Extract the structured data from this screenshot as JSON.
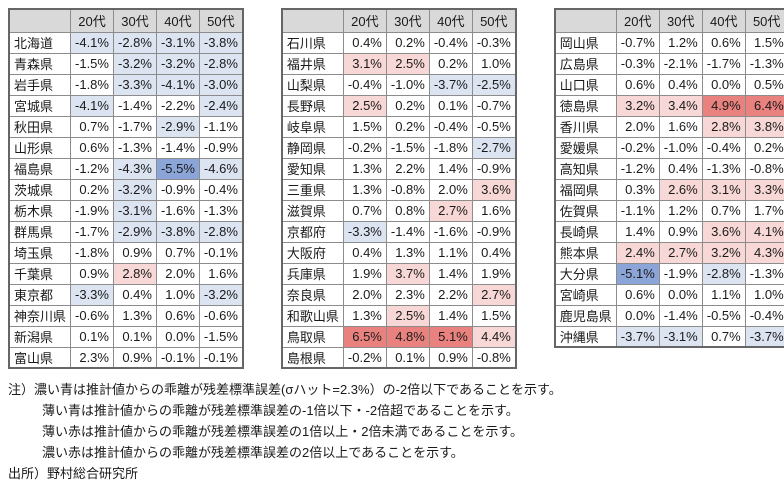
{
  "colors": {
    "dark_blue": "#8ca5d8",
    "light_blue": "#dce4f2",
    "light_red": "#f8d8d6",
    "dark_red": "#e9827f",
    "header_bg": "#d9d9d9",
    "inner_border": "#8c8c8c",
    "outer_border": "#666666",
    "text": "#1a1a1a"
  },
  "chart_data": {
    "type": "heatmap",
    "unit": "%",
    "value_format": "one_decimal_percent",
    "sigma_hat_pct": 2.3,
    "columns": [
      "20代",
      "30代",
      "40代",
      "50代"
    ],
    "color_codes": {
      "w": "no fill",
      "lb": "light blue: deviation ≤ -1σ and > -2σ",
      "db": "dark blue: deviation ≤ -2σ",
      "lr": "light red: deviation ≥ +1σ and < +2σ",
      "dr": "dark red: deviation ≥ +2σ"
    },
    "tables": [
      {
        "rows": [
          {
            "name": "北海道",
            "values": [
              -4.1,
              -2.8,
              -3.1,
              -3.8
            ],
            "colors": [
              "lb",
              "lb",
              "lb",
              "lb"
            ]
          },
          {
            "name": "青森県",
            "values": [
              -1.5,
              -3.2,
              -3.2,
              -2.8
            ],
            "colors": [
              "w",
              "lb",
              "lb",
              "lb"
            ]
          },
          {
            "name": "岩手県",
            "values": [
              -1.8,
              -3.3,
              -4.1,
              -3.0
            ],
            "colors": [
              "w",
              "lb",
              "lb",
              "lb"
            ]
          },
          {
            "name": "宮城県",
            "values": [
              -4.1,
              -1.4,
              -2.2,
              -2.4
            ],
            "colors": [
              "lb",
              "w",
              "w",
              "lb"
            ]
          },
          {
            "name": "秋田県",
            "values": [
              0.7,
              -1.7,
              -2.9,
              -1.1
            ],
            "colors": [
              "w",
              "w",
              "lb",
              "w"
            ]
          },
          {
            "name": "山形県",
            "values": [
              0.6,
              -1.3,
              -1.4,
              -0.9
            ],
            "colors": [
              "w",
              "w",
              "w",
              "w"
            ]
          },
          {
            "name": "福島県",
            "values": [
              -1.2,
              -4.3,
              -5.5,
              -4.6
            ],
            "colors": [
              "w",
              "lb",
              "db",
              "lb"
            ]
          },
          {
            "name": "茨城県",
            "values": [
              0.2,
              -3.2,
              -0.9,
              -0.4
            ],
            "colors": [
              "w",
              "lb",
              "w",
              "w"
            ]
          },
          {
            "name": "栃木県",
            "values": [
              -1.9,
              -3.1,
              -1.6,
              -1.3
            ],
            "colors": [
              "w",
              "lb",
              "w",
              "w"
            ]
          },
          {
            "name": "群馬県",
            "values": [
              -1.7,
              -2.9,
              -3.8,
              -2.8
            ],
            "colors": [
              "w",
              "lb",
              "lb",
              "lb"
            ]
          },
          {
            "name": "埼玉県",
            "values": [
              -1.8,
              0.9,
              0.7,
              -0.1
            ],
            "colors": [
              "w",
              "w",
              "w",
              "w"
            ]
          },
          {
            "name": "千葉県",
            "values": [
              0.9,
              2.8,
              2.0,
              1.6
            ],
            "colors": [
              "w",
              "lr",
              "w",
              "w"
            ]
          },
          {
            "name": "東京都",
            "values": [
              -3.3,
              0.4,
              1.0,
              -3.2
            ],
            "colors": [
              "lb",
              "w",
              "w",
              "lb"
            ]
          },
          {
            "name": "神奈川県",
            "values": [
              -0.6,
              1.3,
              0.6,
              -0.6
            ],
            "colors": [
              "w",
              "w",
              "w",
              "w"
            ]
          },
          {
            "name": "新潟県",
            "values": [
              0.1,
              0.1,
              0.0,
              -1.5
            ],
            "colors": [
              "w",
              "w",
              "w",
              "w"
            ]
          },
          {
            "name": "富山県",
            "values": [
              2.3,
              0.9,
              -0.1,
              -0.1
            ],
            "colors": [
              "w",
              "w",
              "w",
              "w"
            ]
          }
        ]
      },
      {
        "rows": [
          {
            "name": "石川県",
            "values": [
              0.4,
              0.2,
              -0.4,
              -0.3
            ],
            "colors": [
              "w",
              "w",
              "w",
              "w"
            ]
          },
          {
            "name": "福井県",
            "values": [
              3.1,
              2.5,
              0.2,
              1.0
            ],
            "colors": [
              "lr",
              "lr",
              "w",
              "w"
            ]
          },
          {
            "name": "山梨県",
            "values": [
              -0.4,
              -1.0,
              -3.7,
              -2.5
            ],
            "colors": [
              "w",
              "w",
              "lb",
              "lb"
            ]
          },
          {
            "name": "長野県",
            "values": [
              2.5,
              0.2,
              0.1,
              -0.7
            ],
            "colors": [
              "lr",
              "w",
              "w",
              "w"
            ]
          },
          {
            "name": "岐阜県",
            "values": [
              1.5,
              0.2,
              -0.4,
              -0.5
            ],
            "colors": [
              "w",
              "w",
              "w",
              "w"
            ]
          },
          {
            "name": "静岡県",
            "values": [
              -0.2,
              -1.5,
              -1.8,
              -2.7
            ],
            "colors": [
              "w",
              "w",
              "w",
              "lb"
            ]
          },
          {
            "name": "愛知県",
            "values": [
              1.3,
              2.2,
              1.4,
              -0.9
            ],
            "colors": [
              "w",
              "w",
              "w",
              "w"
            ]
          },
          {
            "name": "三重県",
            "values": [
              1.3,
              -0.8,
              2.0,
              3.6
            ],
            "colors": [
              "w",
              "w",
              "w",
              "lr"
            ]
          },
          {
            "name": "滋賀県",
            "values": [
              0.7,
              0.8,
              2.7,
              1.6
            ],
            "colors": [
              "w",
              "w",
              "lr",
              "w"
            ]
          },
          {
            "name": "京都府",
            "values": [
              -3.3,
              -1.4,
              -1.6,
              -0.9
            ],
            "colors": [
              "lb",
              "w",
              "w",
              "w"
            ]
          },
          {
            "name": "大阪府",
            "values": [
              0.4,
              1.3,
              1.1,
              0.4
            ],
            "colors": [
              "w",
              "w",
              "w",
              "w"
            ]
          },
          {
            "name": "兵庫県",
            "values": [
              1.9,
              3.7,
              1.4,
              1.9
            ],
            "colors": [
              "w",
              "lr",
              "w",
              "w"
            ]
          },
          {
            "name": "奈良県",
            "values": [
              2.0,
              2.3,
              2.2,
              2.7
            ],
            "colors": [
              "w",
              "w",
              "w",
              "lr"
            ]
          },
          {
            "name": "和歌山県",
            "values": [
              1.3,
              2.5,
              1.4,
              1.5
            ],
            "colors": [
              "w",
              "lr",
              "w",
              "w"
            ]
          },
          {
            "name": "鳥取県",
            "values": [
              6.5,
              4.8,
              5.1,
              4.4
            ],
            "colors": [
              "dr",
              "dr",
              "dr",
              "lr"
            ]
          },
          {
            "name": "島根県",
            "values": [
              -0.2,
              0.1,
              0.9,
              -0.8
            ],
            "colors": [
              "w",
              "w",
              "w",
              "w"
            ]
          }
        ]
      },
      {
        "rows": [
          {
            "name": "岡山県",
            "values": [
              -0.7,
              1.2,
              0.6,
              1.5
            ],
            "colors": [
              "w",
              "w",
              "w",
              "w"
            ]
          },
          {
            "name": "広島県",
            "values": [
              -0.3,
              -2.1,
              -1.7,
              -1.3
            ],
            "colors": [
              "w",
              "w",
              "w",
              "w"
            ]
          },
          {
            "name": "山口県",
            "values": [
              0.6,
              0.4,
              0.0,
              0.5
            ],
            "colors": [
              "w",
              "w",
              "w",
              "w"
            ]
          },
          {
            "name": "徳島県",
            "values": [
              3.2,
              3.4,
              4.9,
              6.4
            ],
            "colors": [
              "lr",
              "lr",
              "dr",
              "dr"
            ]
          },
          {
            "name": "香川県",
            "values": [
              2.0,
              1.6,
              2.8,
              3.8
            ],
            "colors": [
              "w",
              "w",
              "lr",
              "lr"
            ]
          },
          {
            "name": "愛媛県",
            "values": [
              -0.2,
              -1.0,
              -0.4,
              0.2
            ],
            "colors": [
              "w",
              "w",
              "w",
              "w"
            ]
          },
          {
            "name": "高知県",
            "values": [
              -1.2,
              0.4,
              -1.3,
              -0.8
            ],
            "colors": [
              "w",
              "w",
              "w",
              "w"
            ]
          },
          {
            "name": "福岡県",
            "values": [
              0.3,
              2.6,
              3.1,
              3.3
            ],
            "colors": [
              "w",
              "lr",
              "lr",
              "lr"
            ]
          },
          {
            "name": "佐賀県",
            "values": [
              -1.1,
              1.2,
              0.7,
              1.7
            ],
            "colors": [
              "w",
              "w",
              "w",
              "w"
            ]
          },
          {
            "name": "長崎県",
            "values": [
              1.4,
              0.9,
              3.6,
              4.1
            ],
            "colors": [
              "w",
              "w",
              "lr",
              "lr"
            ]
          },
          {
            "name": "熊本県",
            "values": [
              2.4,
              2.7,
              3.2,
              4.3
            ],
            "colors": [
              "lr",
              "lr",
              "lr",
              "lr"
            ]
          },
          {
            "name": "大分県",
            "values": [
              -5.1,
              -1.9,
              -2.8,
              -1.3
            ],
            "colors": [
              "db",
              "w",
              "lb",
              "w"
            ]
          },
          {
            "name": "宮崎県",
            "values": [
              0.6,
              0.0,
              1.1,
              1.0
            ],
            "colors": [
              "w",
              "w",
              "w",
              "w"
            ]
          },
          {
            "name": "鹿児島県",
            "values": [
              0.0,
              -1.4,
              -0.5,
              -0.4
            ],
            "colors": [
              "w",
              "w",
              "w",
              "w"
            ]
          },
          {
            "name": "沖縄県",
            "values": [
              -3.7,
              -3.1,
              0.7,
              -3.7
            ],
            "colors": [
              "lb",
              "lb",
              "w",
              "lb"
            ]
          }
        ]
      }
    ]
  },
  "notes": [
    "注）濃い青は推計値からの乖離が残差標準誤差(σハット=2.3%）の-2倍以下であることを示す。",
    "薄い青は推計値からの乖離が残差標準誤差の-1倍以下・-2倍超であることを示す。",
    "薄い赤は推計値からの乖離が残差標準誤差の1倍以上・2倍未満であることを示す。",
    "濃い赤は推計値からの乖離が残差標準誤差の2倍以上であることを示す。"
  ],
  "source": "出所）野村総合研究所"
}
